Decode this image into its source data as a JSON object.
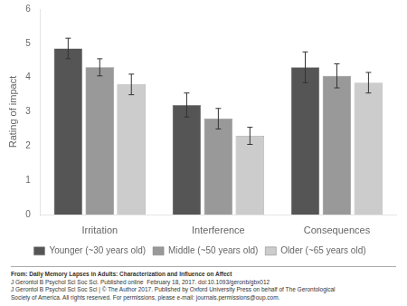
{
  "chart_data": {
    "type": "bar",
    "categories": [
      "Irritation",
      "Interference",
      "Consequences"
    ],
    "series": [
      {
        "name": "Younger (~30 years old)",
        "color": "#555555",
        "values": [
          4.85,
          3.2,
          4.3
        ],
        "errors": [
          0.3,
          0.35,
          0.45
        ]
      },
      {
        "name": "Middle (~50 years old)",
        "color": "#999999",
        "values": [
          4.3,
          2.8,
          4.05
        ],
        "errors": [
          0.25,
          0.3,
          0.35
        ]
      },
      {
        "name": "Older (~65 years old)",
        "color": "#cccccc",
        "values": [
          3.8,
          2.3,
          3.85
        ],
        "errors": [
          0.3,
          0.25,
          0.3
        ]
      }
    ],
    "ylabel": "Rating of impact",
    "ylim": [
      0,
      6
    ],
    "yticks": [
      0,
      1,
      2,
      3,
      4,
      5,
      6
    ],
    "grid": false,
    "legend": "bottom",
    "annotations": [
      "From: Daily Memory Lapses in Adults: Characterization and Influence on Affect",
      "J Gerontol B Psychol Sci Soc Sci. Published online  February 18, 2017. doi:10.1093/geronb/gbx012",
      "J Gerontol B Psychol Sci Soc Sci | © The Author 2017. Published by Oxford University Press on behalf of The Gerontological",
      "Society of America. All rights reserved. For permissions, please e-mail: journals.permissions@oup.com."
    ]
  }
}
